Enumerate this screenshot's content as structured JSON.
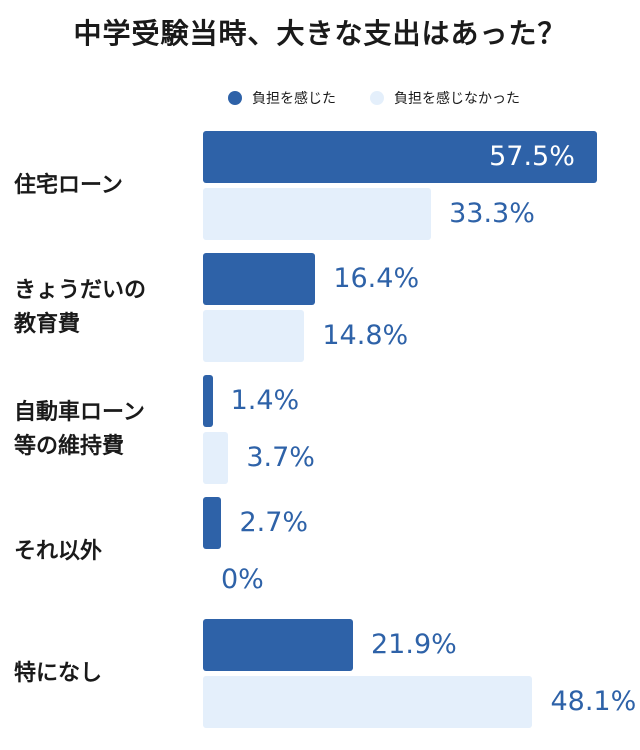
{
  "title": "中学受験当時、大きな支出はあった？",
  "colors": {
    "accent": "#2e62a8",
    "light": "#e4effb",
    "text_blue": "#2e62a8"
  },
  "chart_data": {
    "type": "bar",
    "orientation": "horizontal",
    "categories": [
      [
        "住宅ローン"
      ],
      [
        "きょうだいの",
        "教育費"
      ],
      [
        "自動車ローン",
        "等の維持費"
      ],
      [
        "それ以外"
      ],
      [
        "特になし"
      ]
    ],
    "series": [
      {
        "name": "負担を感じた",
        "values": [
          57.5,
          16.4,
          1.4,
          2.7,
          21.9
        ],
        "labels": [
          "57.5%",
          "16.4%",
          "1.4%",
          "2.7%",
          "21.9%"
        ]
      },
      {
        "name": "負担を感じなかった",
        "values": [
          33.3,
          14.8,
          3.7,
          0,
          48.1
        ],
        "labels": [
          "33.3%",
          "14.8%",
          "3.7%",
          "0%",
          "48.1%"
        ]
      }
    ],
    "xlim": [
      0,
      60
    ],
    "grid": false,
    "legend": "top"
  }
}
